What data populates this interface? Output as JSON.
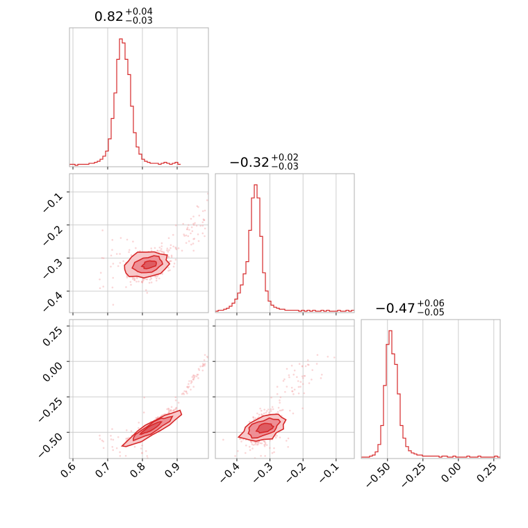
{
  "chart_data": {
    "type": "corner",
    "parameters": [
      {
        "id": "p0",
        "median": 0.82,
        "err_plus": 0.04,
        "err_minus": 0.03
      },
      {
        "id": "p1",
        "median": -0.32,
        "err_plus": 0.02,
        "err_minus": 0.03
      },
      {
        "id": "p2",
        "median": -0.47,
        "err_plus": 0.06,
        "err_minus": 0.05
      }
    ],
    "titles": [
      {
        "main": "0.82",
        "sup": "+0.04",
        "sub": "−0.03"
      },
      {
        "main": "−0.32",
        "sup": "+0.02",
        "sub": "−0.03"
      },
      {
        "main": "−0.47",
        "sup": "+0.06",
        "sub": "−0.05"
      }
    ],
    "axis_ranges": {
      "p0": [
        0.59,
        0.99
      ],
      "p1": [
        -0.465,
        -0.045
      ],
      "p2": [
        -0.685,
        0.295
      ]
    },
    "ticks": {
      "p0": {
        "values": [
          0.6,
          0.7,
          0.8,
          0.9
        ],
        "labels": [
          "0.6",
          "0.7",
          "0.8",
          "0.9"
        ]
      },
      "p1": {
        "values": [
          -0.4,
          -0.3,
          -0.2,
          -0.1
        ],
        "labels": [
          "−0.4",
          "−0.3",
          "−0.2",
          "−0.1"
        ]
      },
      "p2": {
        "values": [
          -0.5,
          -0.25,
          0.0,
          0.25
        ],
        "labels": [
          "−0.50",
          "−0.25",
          "0.00",
          "0.25"
        ]
      }
    },
    "grid": true,
    "color": "#d62728",
    "histograms": {
      "p0": {
        "edges_start": 0.59,
        "bin_width": 0.008,
        "counts": [
          1,
          1,
          0,
          1,
          1,
          1,
          1,
          2,
          2,
          3,
          4,
          6,
          9,
          14,
          26,
          46,
          71,
          104,
          124,
          120,
          104,
          89,
          58,
          32,
          18,
          11,
          6,
          4,
          3,
          2,
          2,
          2,
          1,
          2,
          3,
          2,
          1,
          2,
          3,
          1
        ]
      },
      "p1": {
        "edges_start": -0.465,
        "bin_width": 0.0084,
        "counts": [
          0,
          1,
          1,
          2,
          3,
          5,
          8,
          12,
          18,
          26,
          37,
          49,
          80,
          112,
          125,
          112,
          74,
          38,
          20,
          10,
          6,
          4,
          3,
          2,
          2,
          1,
          1,
          1,
          1,
          1,
          0,
          1,
          0,
          1,
          0,
          1,
          0,
          0,
          1,
          0,
          1,
          0,
          0,
          0,
          1,
          0,
          0,
          1,
          0,
          1
        ]
      },
      "p2": {
        "edges_start": -0.685,
        "bin_width": 0.0196,
        "counts": [
          0,
          0,
          0,
          1,
          2,
          5,
          12,
          30,
          68,
          107,
          120,
          98,
          88,
          60,
          30,
          18,
          10,
          6,
          4,
          3,
          2,
          2,
          1,
          1,
          1,
          1,
          1,
          1,
          0,
          1,
          1,
          0,
          0,
          1,
          0,
          0,
          0,
          0,
          1,
          0,
          0,
          0,
          1,
          0,
          0,
          0,
          0,
          0,
          1,
          0
        ]
      }
    }
  }
}
